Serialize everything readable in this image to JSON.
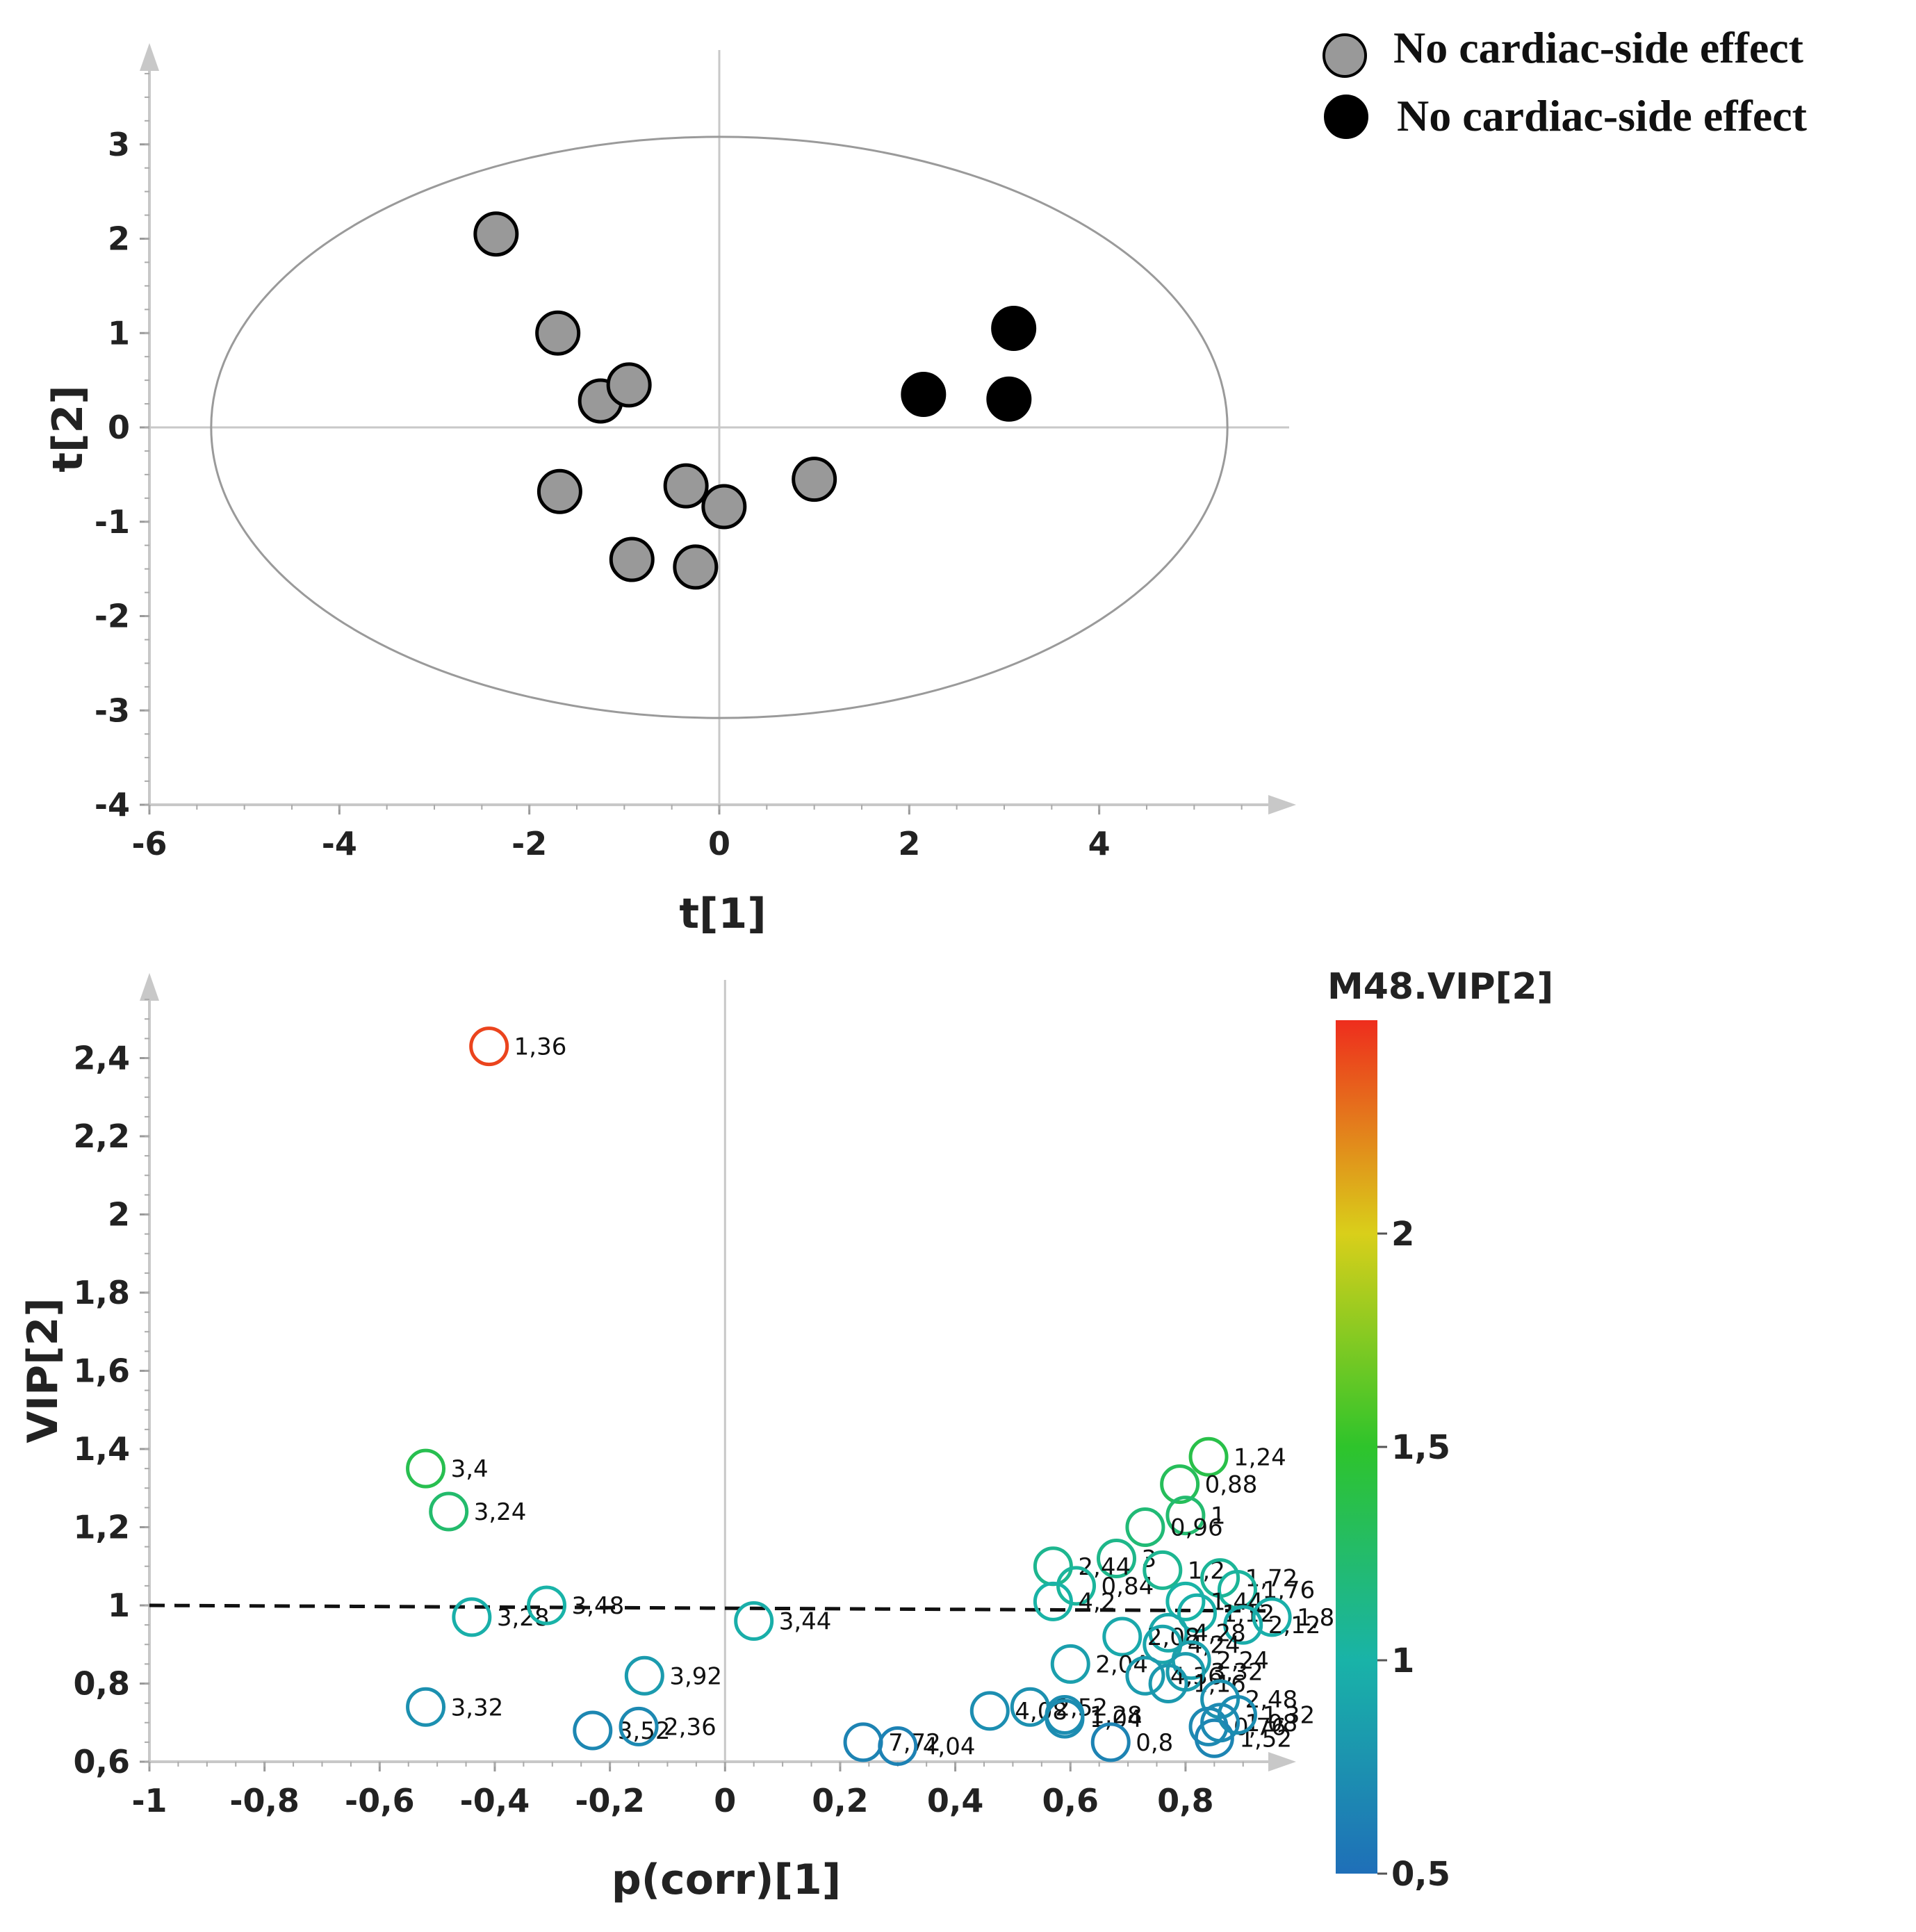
{
  "legend": [
    {
      "label": "No cardiac-side effect",
      "color": "#999999"
    },
    {
      "label": "No cardiac-side effect",
      "color": "#000000"
    }
  ],
  "chart_data": [
    {
      "type": "scatter",
      "title": "",
      "xlabel": "t[1]",
      "ylabel": "t[2]",
      "xlim": [
        -6,
        6
      ],
      "ylim": [
        -4,
        4
      ],
      "xticks": [
        "-6",
        "-4",
        "-2",
        "0",
        "2",
        "4"
      ],
      "yticks": [
        "-4",
        "-3",
        "-2",
        "-1",
        "0",
        "1",
        "2",
        "3"
      ],
      "ellipse": {
        "cx": 0,
        "cy": 0,
        "rx": 5.35,
        "ry": 3.08
      },
      "series": [
        {
          "name": "No cardiac-side effect",
          "color": "#999999",
          "points": [
            [
              -2.35,
              2.05
            ],
            [
              -1.7,
              1.0
            ],
            [
              -1.25,
              0.28
            ],
            [
              -0.95,
              0.45
            ],
            [
              -1.68,
              -0.68
            ],
            [
              -0.35,
              -0.62
            ],
            [
              0.05,
              -0.84
            ],
            [
              1.0,
              -0.55
            ],
            [
              -0.92,
              -1.4
            ],
            [
              -0.25,
              -1.48
            ]
          ]
        },
        {
          "name": "No cardiac-side effect",
          "color": "#000000",
          "points": [
            [
              2.15,
              0.35
            ],
            [
              3.1,
              1.05
            ],
            [
              3.05,
              0.3
            ]
          ]
        }
      ]
    },
    {
      "type": "scatter",
      "title": "",
      "xlabel": "p(corr)[1]",
      "ylabel": "VIP[2]",
      "xlim": [
        -1,
        1
      ],
      "ylim": [
        0.6,
        2.6
      ],
      "xticks": [
        "-1",
        "-0,8",
        "-0,6",
        "-0,4",
        "-0,2",
        "0",
        "0,2",
        "0,4",
        "0,6",
        "0,8"
      ],
      "yticks": [
        "0,6",
        "0,8",
        "1",
        "1,2",
        "1,4",
        "1,6",
        "1,8",
        "2",
        "2,2",
        "2,4"
      ],
      "threshold_line": {
        "y": 1.0,
        "style": "dashed"
      },
      "colorbar": {
        "title": "M48.VIP[2]",
        "range": [
          0.5,
          2.5
        ],
        "ticks": [
          "0,5",
          "1",
          "1,5",
          "2"
        ]
      },
      "points": [
        {
          "x": -0.41,
          "y": 2.43,
          "label": "1,36",
          "vip": 2.43
        },
        {
          "x": -0.52,
          "y": 1.35,
          "label": "3,4",
          "vip": 1.35
        },
        {
          "x": -0.48,
          "y": 1.24,
          "label": "3,24",
          "vip": 1.24
        },
        {
          "x": -0.44,
          "y": 0.97,
          "label": "3,28",
          "vip": 0.97
        },
        {
          "x": -0.31,
          "y": 1.0,
          "label": "3,48",
          "vip": 1.0
        },
        {
          "x": 0.05,
          "y": 0.96,
          "label": "3,44",
          "vip": 0.96
        },
        {
          "x": -0.14,
          "y": 0.82,
          "label": "3,92",
          "vip": 0.82
        },
        {
          "x": -0.52,
          "y": 0.74,
          "label": "3,32",
          "vip": 0.74
        },
        {
          "x": -0.23,
          "y": 0.68,
          "label": "3,52",
          "vip": 0.68
        },
        {
          "x": -0.15,
          "y": 0.69,
          "label": "2,36",
          "vip": 0.69
        },
        {
          "x": 0.24,
          "y": 0.65,
          "label": "7,72",
          "vip": 0.65
        },
        {
          "x": 0.3,
          "y": 0.64,
          "label": "4,04",
          "vip": 0.64
        },
        {
          "x": 0.46,
          "y": 0.73,
          "label": "4,08",
          "vip": 0.73
        },
        {
          "x": 0.53,
          "y": 0.74,
          "label": "2,52",
          "vip": 0.74
        },
        {
          "x": 0.59,
          "y": 0.72,
          "label": "1,28",
          "vip": 0.72
        },
        {
          "x": 0.59,
          "y": 0.71,
          "label": "1,04",
          "vip": 0.71
        },
        {
          "x": 0.84,
          "y": 1.38,
          "label": "1,24",
          "vip": 1.38
        },
        {
          "x": 0.79,
          "y": 1.31,
          "label": "0,88",
          "vip": 1.31
        },
        {
          "x": 0.8,
          "y": 1.23,
          "label": "1",
          "vip": 1.23
        },
        {
          "x": 0.73,
          "y": 1.2,
          "label": "0,96",
          "vip": 1.2
        },
        {
          "x": 0.68,
          "y": 1.12,
          "label": "3",
          "vip": 1.12
        },
        {
          "x": 0.57,
          "y": 1.1,
          "label": "2,44",
          "vip": 1.1
        },
        {
          "x": 0.61,
          "y": 1.05,
          "label": "0,84",
          "vip": 1.05
        },
        {
          "x": 0.57,
          "y": 1.01,
          "label": "4,2",
          "vip": 1.01
        },
        {
          "x": 0.76,
          "y": 1.09,
          "label": "1,2",
          "vip": 1.09
        },
        {
          "x": 0.86,
          "y": 1.07,
          "label": "1,72",
          "vip": 1.07
        },
        {
          "x": 0.89,
          "y": 1.04,
          "label": "1,76",
          "vip": 1.04
        },
        {
          "x": 0.8,
          "y": 1.01,
          "label": "1,44",
          "vip": 1.01
        },
        {
          "x": 0.82,
          "y": 0.98,
          "label": "1,12",
          "vip": 0.98
        },
        {
          "x": 0.95,
          "y": 0.97,
          "label": "1,8",
          "vip": 0.97
        },
        {
          "x": 0.9,
          "y": 0.95,
          "label": "2,12",
          "vip": 0.95
        },
        {
          "x": 0.77,
          "y": 0.93,
          "label": "4,28",
          "vip": 0.93
        },
        {
          "x": 0.69,
          "y": 0.92,
          "label": "2,08",
          "vip": 0.92
        },
        {
          "x": 0.76,
          "y": 0.9,
          "label": "4,24",
          "vip": 0.9
        },
        {
          "x": 0.6,
          "y": 0.85,
          "label": "2,04",
          "vip": 0.85
        },
        {
          "x": 0.81,
          "y": 0.86,
          "label": "2,24",
          "vip": 0.86
        },
        {
          "x": 0.73,
          "y": 0.82,
          "label": "4,36",
          "vip": 0.82
        },
        {
          "x": 0.8,
          "y": 0.83,
          "label": "3,32",
          "vip": 0.83
        },
        {
          "x": 0.77,
          "y": 0.8,
          "label": "1,16",
          "vip": 0.8
        },
        {
          "x": 0.86,
          "y": 0.76,
          "label": "2,48",
          "vip": 0.76
        },
        {
          "x": 0.84,
          "y": 0.69,
          "label": "0,76",
          "vip": 0.69
        },
        {
          "x": 0.67,
          "y": 0.65,
          "label": "0,8",
          "vip": 0.65
        },
        {
          "x": 0.85,
          "y": 0.66,
          "label": "1,52",
          "vip": 0.66
        },
        {
          "x": 0.86,
          "y": 0.7,
          "label": "1,08",
          "vip": 0.7
        },
        {
          "x": 0.89,
          "y": 0.72,
          "label": "1,32",
          "vip": 0.72
        }
      ]
    }
  ]
}
